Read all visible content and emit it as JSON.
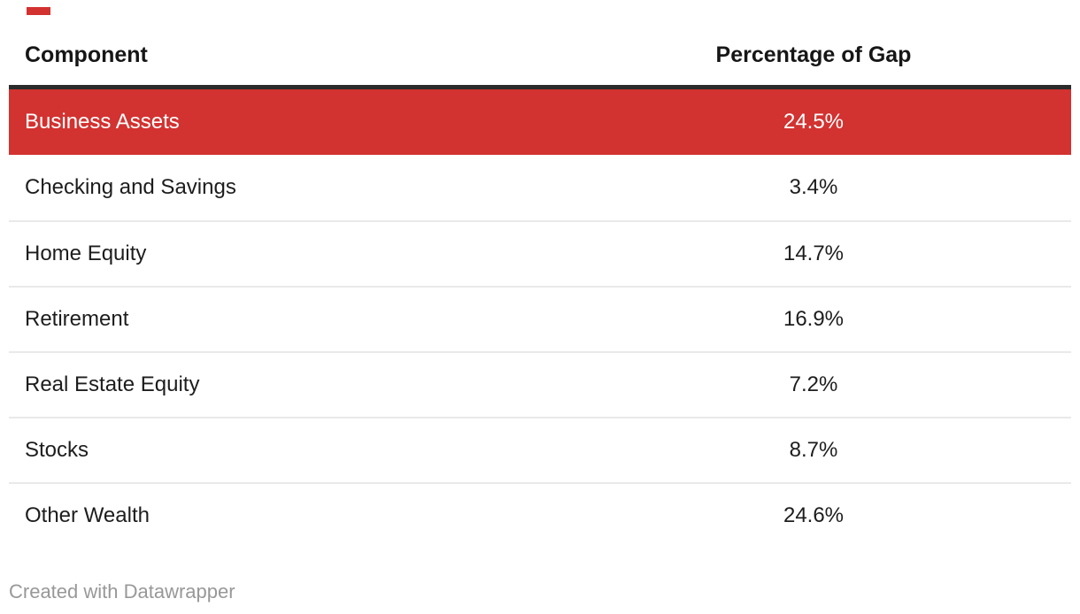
{
  "table": {
    "columns": [
      {
        "label": "Component",
        "align": "left"
      },
      {
        "label": "Percentage of Gap",
        "align": "center"
      }
    ],
    "rows": [
      {
        "component": "Business Assets",
        "value": "24.5%",
        "highlighted": true
      },
      {
        "component": "Checking and Savings",
        "value": "3.4%",
        "highlighted": false
      },
      {
        "component": "Home Equity",
        "value": "14.7%",
        "highlighted": false
      },
      {
        "component": "Retirement",
        "value": "16.9%",
        "highlighted": false
      },
      {
        "component": "Real Estate Equity",
        "value": "7.2%",
        "highlighted": false
      },
      {
        "component": "Stocks",
        "value": "8.7%",
        "highlighted": false
      },
      {
        "component": "Other Wealth",
        "value": "24.6%",
        "highlighted": false
      }
    ]
  },
  "footer": {
    "credit": "Created with Datawrapper"
  },
  "colors": {
    "highlight_red": "#d23230",
    "header_rule": "#2b2b2b",
    "row_divider": "#e9e9e9",
    "body_text": "#1d1d1d",
    "footer_text": "#989898"
  },
  "chart_data": {
    "type": "table",
    "title": "",
    "columns": [
      "Component",
      "Percentage of Gap"
    ],
    "categories": [
      "Business Assets",
      "Checking and Savings",
      "Home Equity",
      "Retirement",
      "Real Estate Equity",
      "Stocks",
      "Other Wealth"
    ],
    "values": [
      24.5,
      3.4,
      14.7,
      16.9,
      7.2,
      8.7,
      24.6
    ],
    "value_unit": "%",
    "highlighted_row": "Business Assets",
    "highlight_color": "#d23230",
    "credit": "Created with Datawrapper"
  }
}
